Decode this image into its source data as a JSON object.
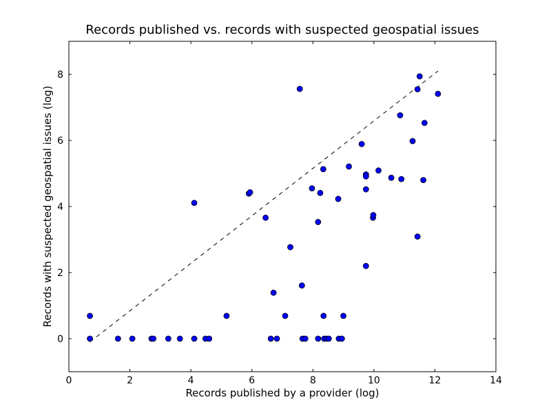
{
  "chart_data": {
    "type": "scatter",
    "title": "Records published vs. records with suspected geospatial issues",
    "xlabel": "Records published by a provider (log)",
    "ylabel": "Records with suspected geospatial issues (log)",
    "xlim": [
      0,
      14
    ],
    "ylim": [
      -1,
      9
    ],
    "xticks": [
      0,
      2,
      4,
      6,
      8,
      10,
      12,
      14
    ],
    "yticks": [
      0,
      2,
      4,
      6,
      8
    ],
    "grid": false,
    "marker_color": "#0000ff",
    "line_color": "#000000",
    "reference_line": {
      "style": "dashed",
      "x": [
        0.69,
        12.1
      ],
      "y": [
        -0.1,
        8.1
      ]
    },
    "points": [
      [
        0.69,
        0.69
      ],
      [
        0.69,
        0.0
      ],
      [
        1.61,
        0.0
      ],
      [
        2.08,
        0.0
      ],
      [
        2.71,
        0.0
      ],
      [
        2.77,
        0.0
      ],
      [
        3.26,
        0.0
      ],
      [
        3.64,
        0.0
      ],
      [
        4.11,
        0.0
      ],
      [
        4.48,
        0.0
      ],
      [
        4.6,
        0.0
      ],
      [
        4.11,
        4.11
      ],
      [
        5.17,
        0.69
      ],
      [
        5.9,
        4.39
      ],
      [
        5.94,
        4.43
      ],
      [
        6.45,
        3.66
      ],
      [
        6.62,
        0.0
      ],
      [
        6.71,
        1.39
      ],
      [
        6.82,
        0.0
      ],
      [
        7.09,
        0.69
      ],
      [
        7.26,
        2.77
      ],
      [
        7.57,
        7.56
      ],
      [
        7.64,
        1.61
      ],
      [
        7.66,
        0.0
      ],
      [
        7.75,
        0.0
      ],
      [
        7.97,
        4.55
      ],
      [
        8.17,
        3.53
      ],
      [
        8.17,
        0.0
      ],
      [
        8.24,
        4.41
      ],
      [
        8.34,
        5.13
      ],
      [
        8.35,
        0.69
      ],
      [
        8.37,
        0.0
      ],
      [
        8.45,
        0.0
      ],
      [
        8.52,
        0.0
      ],
      [
        8.83,
        4.23
      ],
      [
        8.85,
        0.0
      ],
      [
        8.95,
        0.0
      ],
      [
        9.0,
        0.69
      ],
      [
        9.18,
        5.21
      ],
      [
        9.6,
        5.89
      ],
      [
        9.74,
        4.97
      ],
      [
        9.74,
        4.91
      ],
      [
        9.74,
        4.52
      ],
      [
        9.74,
        2.2
      ],
      [
        9.97,
        3.66
      ],
      [
        9.98,
        3.74
      ],
      [
        10.15,
        5.09
      ],
      [
        10.57,
        4.87
      ],
      [
        10.86,
        6.76
      ],
      [
        10.9,
        4.83
      ],
      [
        11.27,
        5.98
      ],
      [
        11.43,
        7.55
      ],
      [
        11.43,
        3.09
      ],
      [
        11.5,
        7.94
      ],
      [
        11.62,
        4.8
      ],
      [
        11.66,
        6.53
      ],
      [
        12.1,
        7.41
      ]
    ]
  }
}
